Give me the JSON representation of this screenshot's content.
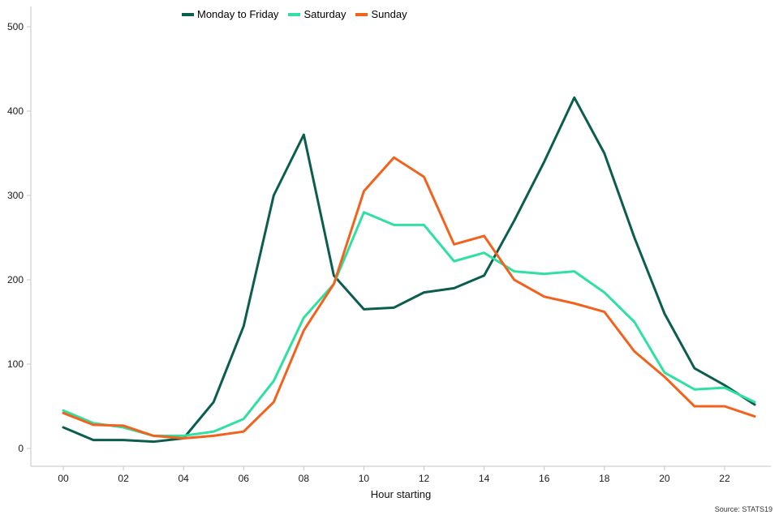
{
  "chart_data": {
    "type": "line",
    "title": "",
    "xlabel": "Hour starting",
    "ylabel": "",
    "ylim": [
      0,
      500
    ],
    "y_ticks": [
      0,
      100,
      200,
      300,
      400,
      500
    ],
    "x": [
      0,
      1,
      2,
      3,
      4,
      5,
      6,
      7,
      8,
      9,
      10,
      11,
      12,
      13,
      14,
      15,
      16,
      17,
      18,
      19,
      20,
      21,
      22,
      23
    ],
    "x_tick_labels": [
      "00",
      "02",
      "04",
      "06",
      "08",
      "10",
      "12",
      "14",
      "16",
      "18",
      "20",
      "22"
    ],
    "grid": false,
    "legend_position": "top",
    "axis_color": "#c6c6c6",
    "series": [
      {
        "name": "Monday to Friday",
        "color": "#0b5d4e",
        "values": [
          25,
          10,
          10,
          8,
          12,
          55,
          145,
          300,
          372,
          205,
          165,
          167,
          185,
          190,
          205,
          270,
          340,
          416,
          350,
          250,
          160,
          95,
          75,
          52
        ]
      },
      {
        "name": "Saturday",
        "color": "#2fe0a2",
        "values": [
          45,
          30,
          25,
          15,
          15,
          20,
          35,
          80,
          155,
          195,
          280,
          265,
          265,
          222,
          232,
          210,
          207,
          210,
          185,
          150,
          90,
          70,
          72,
          55
        ]
      },
      {
        "name": "Sunday",
        "color": "#f2621d",
        "values": [
          42,
          28,
          27,
          15,
          12,
          15,
          20,
          55,
          140,
          195,
          305,
          345,
          322,
          242,
          252,
          200,
          180,
          172,
          162,
          115,
          85,
          50,
          50,
          38
        ]
      }
    ],
    "source": "Source: STATS19"
  }
}
